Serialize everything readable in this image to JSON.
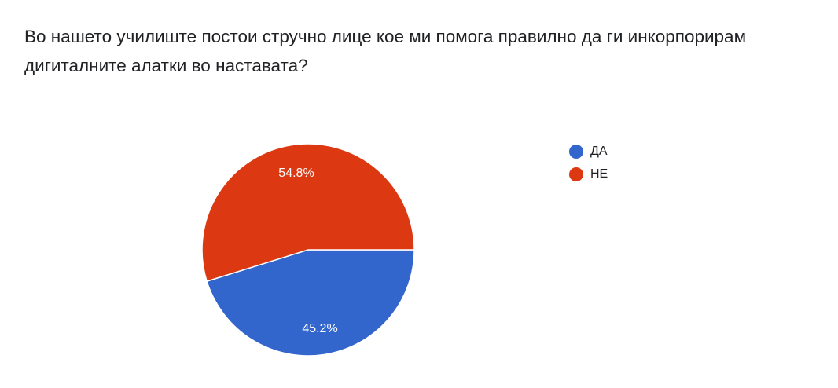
{
  "question": {
    "text": "Во нашето училиште постои стручно лице кое ми помога правилно да ги инкорпорирам дигиталните алатки во наставата?"
  },
  "chart_data": {
    "type": "pie",
    "title": "",
    "slices": [
      {
        "label": "ДА",
        "value": 45.2,
        "display": "45.2%",
        "color": "#3366cc"
      },
      {
        "label": "НЕ",
        "value": 54.8,
        "display": "54.8%",
        "color": "#dc3912"
      }
    ],
    "legend_position": "right"
  }
}
